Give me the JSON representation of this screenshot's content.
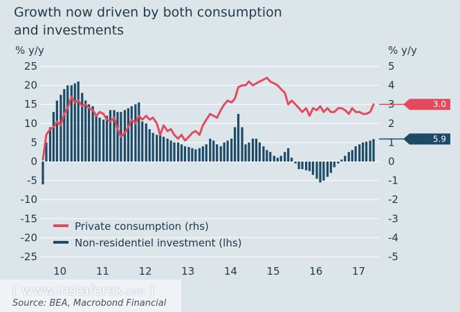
{
  "title_line1": "Growth now driven by both consumption",
  "title_line2": "and investments",
  "watermark": {
    "left_bracket": "[",
    "text": "www.instaforex",
    "suffix": ".com",
    "right_bracket": "]"
  },
  "source": "Source: BEA, Macrobond Financial",
  "colors": {
    "line": "#e24a5e",
    "bars": "#1d4a66",
    "text": "#233a4a",
    "grid": "#ffffff"
  },
  "chart_data": {
    "type": "bar+line",
    "left_unit": "% y/y",
    "right_unit": "% y/y",
    "left_ylim": [
      -25,
      25
    ],
    "right_ylim": [
      -5,
      5
    ],
    "left_ticks": [
      "25",
      "20",
      "15",
      "10",
      "5",
      "0",
      "-5",
      "-10",
      "-15",
      "-20",
      "-25"
    ],
    "right_ticks": [
      "5",
      "4",
      "3",
      "2",
      "1",
      "0",
      "-1",
      "-2",
      "-3",
      "-4",
      "-5"
    ],
    "x_labels": [
      "10",
      "11",
      "12",
      "13",
      "14",
      "15",
      "16",
      "17"
    ],
    "x_start": 2009.75,
    "x_end": 2017.58,
    "series": [
      {
        "name": "Private consumption (rhs)",
        "axis": "right",
        "kind": "line",
        "last_value_label": "3.0",
        "x": [
          2009.75,
          2009.83,
          2009.92,
          2010.0,
          2010.08,
          2010.17,
          2010.25,
          2010.33,
          2010.42,
          2010.5,
          2010.58,
          2010.67,
          2010.75,
          2010.83,
          2010.92,
          2011.0,
          2011.08,
          2011.17,
          2011.25,
          2011.33,
          2011.42,
          2011.5,
          2011.58,
          2011.67,
          2011.75,
          2011.83,
          2011.92,
          2012.0,
          2012.08,
          2012.17,
          2012.25,
          2012.33,
          2012.42,
          2012.5,
          2012.58,
          2012.67,
          2012.75,
          2012.83,
          2012.92,
          2013.0,
          2013.08,
          2013.17,
          2013.25,
          2013.33,
          2013.42,
          2013.5,
          2013.58,
          2013.67,
          2013.75,
          2013.83,
          2013.92,
          2014.0,
          2014.08,
          2014.17,
          2014.25,
          2014.33,
          2014.42,
          2014.5,
          2014.58,
          2014.67,
          2014.75,
          2014.83,
          2014.92,
          2015.0,
          2015.08,
          2015.17,
          2015.25,
          2015.33,
          2015.42,
          2015.5,
          2015.58,
          2015.67,
          2015.75,
          2015.83,
          2015.92,
          2016.0,
          2016.08,
          2016.17,
          2016.25,
          2016.33,
          2016.42,
          2016.5,
          2016.58,
          2016.67,
          2016.75,
          2016.83,
          2016.92,
          2017.0,
          2017.08,
          2017.17,
          2017.25,
          2017.33,
          2017.42,
          2017.5
        ],
        "values": [
          0.1,
          1.4,
          1.7,
          1.8,
          2.1,
          1.9,
          2.5,
          2.8,
          3.4,
          3.1,
          3.2,
          2.9,
          3.0,
          2.8,
          2.7,
          2.4,
          2.6,
          2.5,
          2.2,
          2.1,
          2.3,
          1.7,
          1.3,
          1.5,
          1.8,
          2.2,
          2.0,
          2.4,
          2.2,
          2.4,
          2.2,
          2.3,
          2.0,
          1.4,
          1.9,
          1.6,
          1.7,
          1.4,
          1.2,
          1.4,
          1.1,
          1.3,
          1.5,
          1.6,
          1.4,
          1.9,
          2.2,
          2.5,
          2.4,
          2.3,
          2.7,
          3.0,
          3.2,
          3.1,
          3.3,
          3.9,
          4.0,
          4.0,
          4.2,
          4.0,
          4.1,
          4.2,
          4.3,
          4.4,
          4.2,
          4.1,
          4.0,
          3.8,
          3.6,
          3.0,
          3.2,
          3.0,
          2.8,
          2.6,
          2.8,
          2.4,
          2.8,
          2.7,
          2.9,
          2.6,
          2.8,
          2.6,
          2.6,
          2.8,
          2.8,
          2.7,
          2.5,
          2.8,
          2.6,
          2.6,
          2.5,
          2.5,
          2.6,
          3.0
        ]
      },
      {
        "name": "Non-residentiel investment (lhs)",
        "axis": "left",
        "kind": "bar",
        "last_value_label": "5.9",
        "x": [
          2009.75,
          2009.83,
          2009.92,
          2010.0,
          2010.08,
          2010.17,
          2010.25,
          2010.33,
          2010.42,
          2010.5,
          2010.58,
          2010.67,
          2010.75,
          2010.83,
          2010.92,
          2011.0,
          2011.08,
          2011.17,
          2011.25,
          2011.33,
          2011.42,
          2011.5,
          2011.58,
          2011.67,
          2011.75,
          2011.83,
          2011.92,
          2012.0,
          2012.08,
          2012.17,
          2012.25,
          2012.33,
          2012.42,
          2012.5,
          2012.58,
          2012.67,
          2012.75,
          2012.83,
          2012.92,
          2013.0,
          2013.08,
          2013.17,
          2013.25,
          2013.33,
          2013.42,
          2013.5,
          2013.58,
          2013.67,
          2013.75,
          2013.83,
          2013.92,
          2014.0,
          2014.08,
          2014.17,
          2014.25,
          2014.33,
          2014.42,
          2014.5,
          2014.58,
          2014.67,
          2014.75,
          2014.83,
          2014.92,
          2015.0,
          2015.08,
          2015.17,
          2015.25,
          2015.33,
          2015.42,
          2015.5,
          2015.58,
          2015.67,
          2015.75,
          2015.83,
          2015.92,
          2016.0,
          2016.08,
          2016.17,
          2016.25,
          2016.33,
          2016.42,
          2016.5,
          2016.58,
          2016.67,
          2016.75,
          2016.83,
          2016.92,
          2017.0,
          2017.08,
          2017.17,
          2017.25,
          2017.33,
          2017.42,
          2017.5
        ],
        "values": [
          -6.0,
          5.0,
          9.0,
          13.0,
          16.0,
          17.5,
          19.0,
          20.0,
          20.0,
          20.5,
          21.0,
          18.0,
          16.0,
          15.0,
          14.5,
          12.5,
          11.5,
          11.0,
          12.0,
          13.5,
          13.5,
          13.0,
          13.0,
          13.5,
          14.0,
          14.5,
          15.0,
          15.5,
          10.5,
          10.0,
          8.5,
          7.5,
          7.0,
          7.0,
          6.5,
          6.0,
          5.5,
          5.0,
          5.0,
          4.5,
          4.0,
          3.8,
          3.5,
          3.2,
          3.5,
          4.0,
          4.5,
          6.0,
          5.5,
          4.5,
          4.0,
          5.0,
          5.5,
          6.0,
          9.0,
          12.5,
          9.0,
          4.5,
          5.0,
          6.0,
          6.0,
          5.0,
          4.0,
          3.0,
          2.5,
          1.5,
          1.0,
          1.5,
          2.5,
          3.5,
          1.0,
          -0.5,
          -2.0,
          -2.0,
          -2.3,
          -2.5,
          -3.5,
          -4.5,
          -5.5,
          -5.0,
          -4.0,
          -3.0,
          -1.5,
          -0.5,
          0.5,
          1.5,
          2.5,
          3.0,
          4.0,
          4.5,
          5.0,
          5.2,
          5.5,
          5.9
        ]
      }
    ],
    "legend": [
      "Private consumption (rhs)",
      "Non-residentiel investment (lhs)"
    ]
  }
}
